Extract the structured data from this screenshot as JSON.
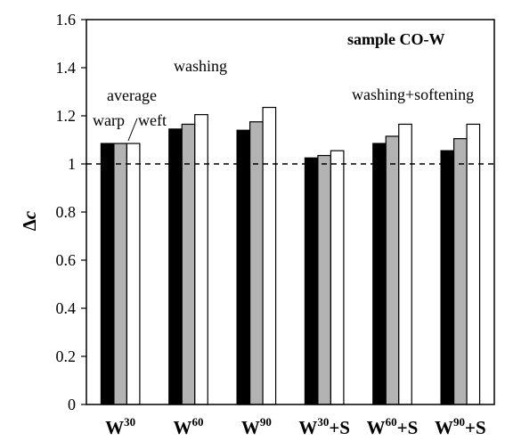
{
  "chart_data": {
    "type": "bar",
    "title": "sample CO-W",
    "ylabel_symbol": "Δ",
    "ylabel_var": "c",
    "ylim": [
      0,
      1.6
    ],
    "yticks": [
      "0",
      "0.2",
      "0.4",
      "0.6",
      "0.8",
      "1",
      "1.2",
      "1.4",
      "1.6"
    ],
    "ytick_values": [
      0,
      0.2,
      0.4,
      0.6,
      0.8,
      1.0,
      1.2,
      1.4,
      1.6
    ],
    "reference_line": 1.0,
    "categories": [
      {
        "base": "W",
        "sup": "30",
        "suffix": ""
      },
      {
        "base": "W",
        "sup": "60",
        "suffix": ""
      },
      {
        "base": "W",
        "sup": "90",
        "suffix": ""
      },
      {
        "base": "W",
        "sup": "30",
        "suffix": "+S"
      },
      {
        "base": "W",
        "sup": "60",
        "suffix": "+S"
      },
      {
        "base": "W",
        "sup": "90",
        "suffix": "+S"
      }
    ],
    "series": [
      {
        "name": "warp",
        "color": "#000000",
        "values": [
          1.085,
          1.145,
          1.14,
          1.025,
          1.085,
          1.055
        ]
      },
      {
        "name": "average",
        "color": "#b3b3b3",
        "values": [
          1.085,
          1.165,
          1.175,
          1.035,
          1.115,
          1.105
        ]
      },
      {
        "name": "weft",
        "color": "#ffffff",
        "values": [
          1.085,
          1.205,
          1.235,
          1.055,
          1.165,
          1.165
        ]
      }
    ],
    "annotations": {
      "washing": "washing",
      "washing_softening": "washing+softening",
      "average": "average",
      "warp": "warp",
      "weft": "weft"
    }
  }
}
